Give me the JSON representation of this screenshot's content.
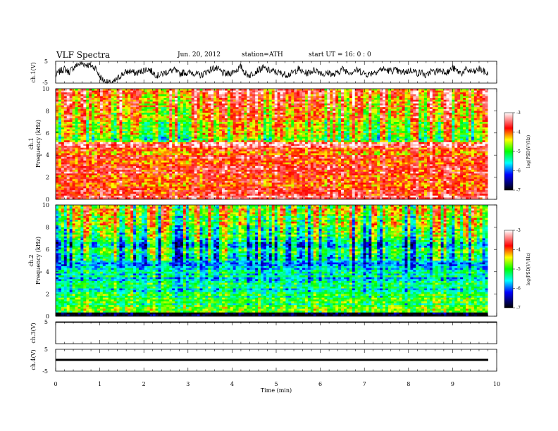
{
  "header": {
    "title": "VLF Spectra",
    "date": "Jun. 20, 2012",
    "station": "station=ATH",
    "start": "start UT =  16: 0 : 0"
  },
  "chart_data": [
    {
      "type": "line",
      "name": "ch1-waveform",
      "ylabel": "ch.1(V)",
      "ylim": [
        -5,
        5
      ],
      "yticks": [
        "5",
        "-5"
      ],
      "x": [
        0,
        0.1,
        0.2,
        0.3,
        0.4,
        0.5,
        0.6,
        0.7,
        0.8,
        0.9,
        1.0,
        1.1,
        1.2,
        1.3,
        1.4,
        1.5,
        1.6,
        1.7,
        1.8,
        1.9,
        2.0,
        2.1,
        2.2,
        2.3,
        2.4,
        2.5,
        2.6,
        2.7,
        2.8,
        2.9,
        3.0,
        3.1,
        3.2,
        3.3,
        3.4,
        3.5,
        3.6,
        3.7,
        3.8,
        3.9,
        4.0,
        4.1,
        4.2,
        4.3,
        4.4,
        4.5,
        4.6,
        4.7,
        4.8,
        4.9,
        5.0,
        5.1,
        5.2,
        5.3,
        5.4,
        5.5,
        5.6,
        5.7,
        5.8,
        5.9,
        6.0,
        6.1,
        6.2,
        6.3,
        6.4,
        6.5,
        6.6,
        6.7,
        6.8,
        6.9,
        7.0,
        7.1,
        7.2,
        7.3,
        7.4,
        7.5,
        7.6,
        7.7,
        7.8,
        7.9,
        8.0,
        8.1,
        8.2,
        8.3,
        8.4,
        8.5,
        8.6,
        8.7,
        8.8,
        8.9,
        9.0,
        9.1,
        9.2,
        9.3,
        9.4,
        9.5,
        9.6,
        9.7,
        9.8
      ],
      "y": [
        -1.5,
        0.5,
        1.5,
        0,
        2,
        3.5,
        4,
        3.5,
        3,
        2,
        -2,
        -4,
        -5,
        -5,
        -3,
        -1,
        0,
        0.5,
        -0.5,
        0,
        1,
        1.5,
        0,
        -1.5,
        -1,
        0,
        0.5,
        1,
        -1,
        0,
        -0.5,
        0,
        -1,
        -1.5,
        0,
        1,
        2,
        1,
        -0.5,
        -1,
        0,
        1,
        2.5,
        -0.5,
        -1.5,
        0,
        1,
        2,
        1,
        0.5,
        0,
        -0.5,
        -1,
        -1,
        0,
        1.5,
        0,
        -0.5,
        0.5,
        1,
        0,
        -1,
        0,
        -1.5,
        0,
        1.5,
        0.5,
        0,
        1,
        0.5,
        -0.5,
        -1,
        0,
        0.5,
        1.5,
        1,
        0.5,
        1,
        0,
        0,
        0.5,
        1,
        -0.5,
        0,
        -2,
        0.5,
        0,
        1,
        0.5,
        0,
        2,
        0.5,
        -0.5,
        1,
        0.5,
        0,
        1.5,
        0.5,
        -1
      ]
    },
    {
      "type": "heatmap",
      "name": "ch1-spectrogram",
      "ylabel": "Frequency (kHz)",
      "channel_label": "ch.1",
      "ylim": [
        0,
        10
      ],
      "yticks": [
        "10",
        "8",
        "6",
        "4",
        "2",
        "0"
      ],
      "colorbar_label": "log(PSD(V²/Hz)",
      "colorbar_ticks": [
        "-3",
        "-4",
        "-5",
        "-6",
        "-7"
      ],
      "clim": [
        -7,
        -3
      ],
      "band_levels": [
        [
          0,
          1,
          -3.6
        ],
        [
          1,
          2,
          -3.9
        ],
        [
          2,
          3,
          -3.7
        ],
        [
          3,
          4,
          -3.8
        ],
        [
          4,
          4.6,
          -4.1
        ],
        [
          4.6,
          5.2,
          -3.3
        ],
        [
          5.2,
          6,
          -4.7
        ],
        [
          6,
          7,
          -4.5
        ],
        [
          7,
          8,
          -4.1
        ],
        [
          8,
          9,
          -4.0
        ],
        [
          9,
          10,
          -3.9
        ]
      ]
    },
    {
      "type": "heatmap",
      "name": "ch2-spectrogram",
      "ylabel": "Frequency (kHz)",
      "channel_label": "ch.2",
      "ylim": [
        0,
        10
      ],
      "yticks": [
        "10",
        "8",
        "6",
        "4",
        "2",
        "0"
      ],
      "colorbar_label": "log(PSD(V²/Hz)",
      "colorbar_ticks": [
        "-3",
        "-4",
        "-5",
        "-6",
        "-7"
      ],
      "clim": [
        -7,
        -3
      ],
      "band_levels": [
        [
          0,
          0.3,
          -6.8
        ],
        [
          0.3,
          1,
          -4.9
        ],
        [
          1,
          2,
          -5.2
        ],
        [
          2,
          3,
          -5.4
        ],
        [
          3,
          4,
          -5.5
        ],
        [
          4,
          5,
          -5.7
        ],
        [
          5,
          6,
          -5.4
        ],
        [
          6,
          7,
          -5.6
        ],
        [
          7,
          8,
          -5.1
        ],
        [
          8,
          9,
          -4.8
        ],
        [
          9,
          10,
          -4.6
        ]
      ]
    },
    {
      "type": "line",
      "name": "ch3-waveform",
      "ylabel": "ch.3(V)",
      "ylim": [
        -5,
        5
      ],
      "yticks": [
        "5"
      ],
      "x": [
        0,
        9.8
      ],
      "y": [
        5,
        5
      ]
    },
    {
      "type": "line",
      "name": "ch4-waveform",
      "ylabel": "ch.4(V)",
      "ylim": [
        -5,
        5
      ],
      "yticks": [
        "5",
        "-5"
      ],
      "x": [
        0,
        9.8
      ],
      "y": [
        0,
        0
      ]
    }
  ],
  "xaxis": {
    "label": "Time (min)",
    "xlim": [
      0,
      10
    ],
    "ticks": [
      "0",
      "1",
      "2",
      "3",
      "4",
      "5",
      "6",
      "7",
      "8",
      "9",
      "10"
    ]
  },
  "colorbar_colors": [
    "#ffffff",
    "#ff0000",
    "#ffff00",
    "#00ff00",
    "#00ffff",
    "#0000ff",
    "#000000"
  ]
}
